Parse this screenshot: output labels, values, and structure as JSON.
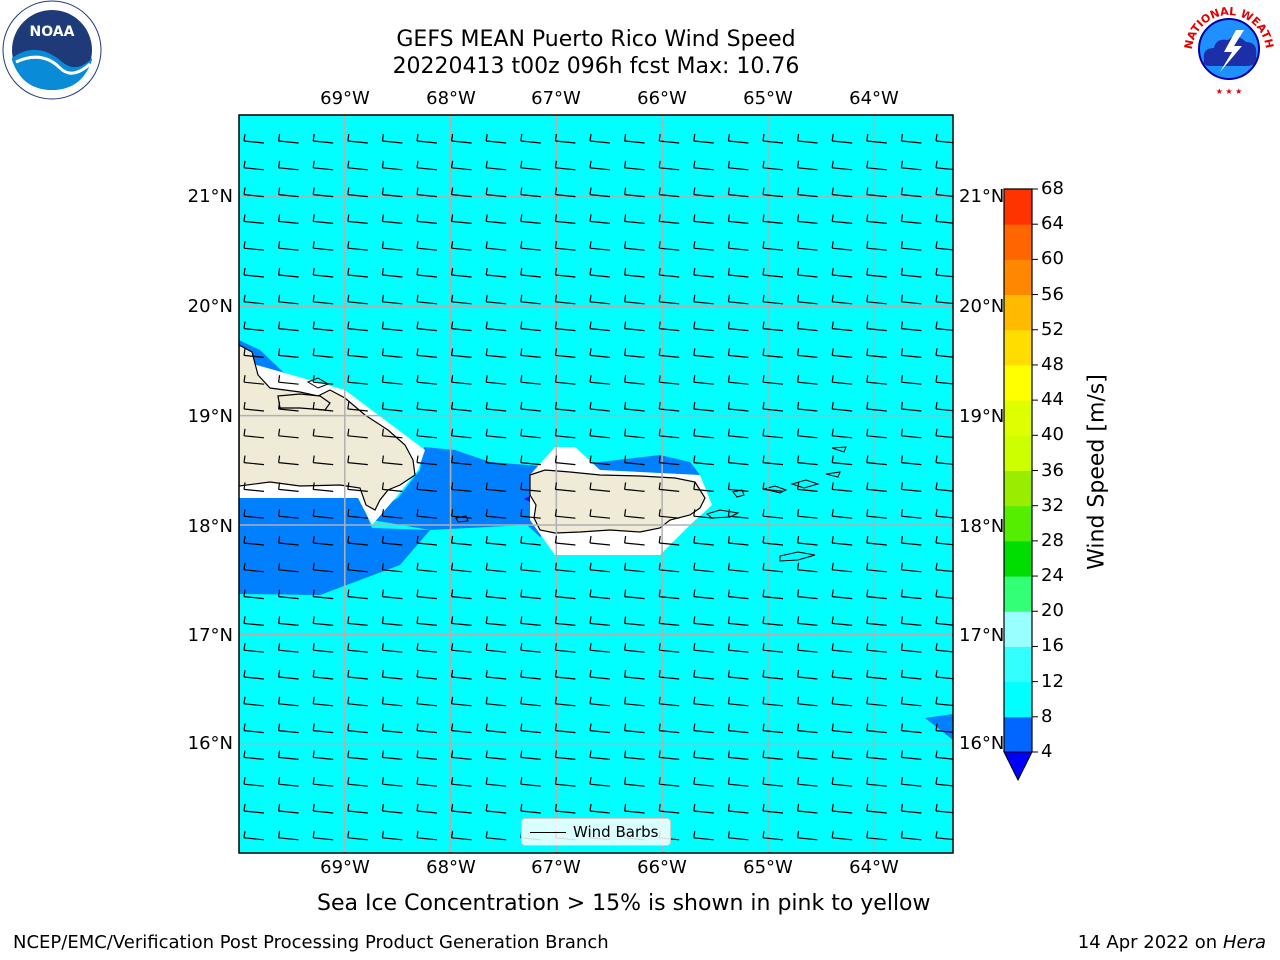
{
  "title": {
    "line1": "GEFS MEAN Puerto Rico Wind Speed",
    "line2": "20220413 t00z 096h fcst   Max: 10.76"
  },
  "logos": {
    "left": {
      "icon": "noaa-logo",
      "text": "NOAA"
    },
    "right": {
      "icon": "nws-logo",
      "text": "NATIONAL WEATHER SERVICE"
    }
  },
  "map": {
    "lon_labels": [
      "69°W",
      "68°W",
      "67°W",
      "66°W",
      "65°W",
      "64°W"
    ],
    "lat_labels": [
      "21°N",
      "20°N",
      "19°N",
      "18°N",
      "17°N",
      "16°N"
    ],
    "lon_values": [
      -69,
      -68,
      -67,
      -66,
      -65,
      -64
    ],
    "lat_values": [
      21,
      20,
      19,
      18,
      17,
      16
    ],
    "lon_range": [
      -70,
      -63.25
    ],
    "lat_range": [
      15.0,
      21.75
    ],
    "background_color": "#00ffff",
    "lower_band_color": "#0080ff",
    "land_color": "#efebd7",
    "grid": true
  },
  "legend": {
    "label": "Wind Barbs"
  },
  "colorbar": {
    "label": "Wind Speed [m/s]",
    "ticks": [
      "4",
      "8",
      "12",
      "16",
      "20",
      "24",
      "28",
      "32",
      "36",
      "40",
      "44",
      "48",
      "52",
      "56",
      "60",
      "64",
      "68"
    ],
    "levels": [
      4,
      8,
      12,
      16,
      20,
      24,
      28,
      32,
      36,
      40,
      44,
      48,
      52,
      56,
      60,
      64,
      68
    ],
    "colors": [
      "#0066ff",
      "#00ffff",
      "#33ffff",
      "#99ffff",
      "#33ff77",
      "#00dd00",
      "#55ee00",
      "#99ee00",
      "#ccff00",
      "#ddff00",
      "#ffff00",
      "#ffdd00",
      "#ffbb00",
      "#ff8800",
      "#ff6600",
      "#ff3300"
    ],
    "under_color": "#0000ff"
  },
  "subtitle": "Sea Ice Concentration > 15% is shown in pink to yellow",
  "footer": {
    "left": "NCEP/EMC/Verification Post Processing Product Generation Branch",
    "date": "14 Apr 2022 on ",
    "host": "Hera"
  }
}
